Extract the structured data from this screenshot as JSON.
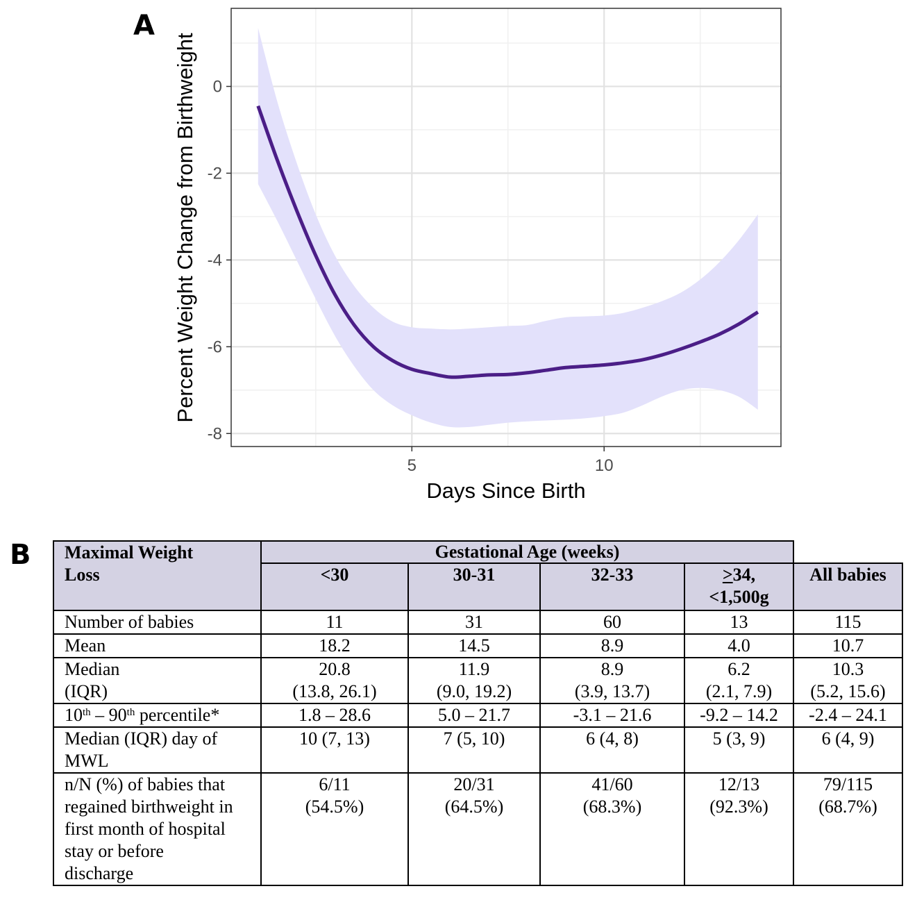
{
  "panel_labels": {
    "a": "A",
    "b": "B"
  },
  "chart_data": {
    "type": "line",
    "title": "",
    "xlabel": "Days Since Birth",
    "ylabel": "Percent Weight Change from Birthweight",
    "xlim": [
      0.3,
      14.6
    ],
    "ylim": [
      -8.3,
      1.8
    ],
    "x_ticks": [
      5,
      10
    ],
    "y_ticks": [
      0,
      -2,
      -4,
      -6,
      -8
    ],
    "grid": true,
    "line_color": "#4b1e87",
    "band_color": "#e3e1fb",
    "series": [
      {
        "x": [
          1,
          1.5,
          2,
          2.5,
          3,
          3.5,
          4,
          4.5,
          5,
          5.5,
          6,
          6.5,
          7,
          7.5,
          8,
          8.5,
          9,
          9.5,
          10,
          10.5,
          11,
          11.5,
          12,
          12.5,
          13,
          13.5,
          14
        ],
        "y": [
          -0.45,
          -1.7,
          -2.85,
          -3.9,
          -4.8,
          -5.5,
          -6.0,
          -6.32,
          -6.52,
          -6.62,
          -6.7,
          -6.68,
          -6.65,
          -6.64,
          -6.6,
          -6.54,
          -6.48,
          -6.45,
          -6.42,
          -6.37,
          -6.3,
          -6.19,
          -6.05,
          -5.89,
          -5.71,
          -5.48,
          -5.2
        ],
        "lower": [
          -2.25,
          -3.1,
          -4.0,
          -4.9,
          -5.75,
          -6.45,
          -7.0,
          -7.35,
          -7.58,
          -7.75,
          -7.85,
          -7.85,
          -7.8,
          -7.75,
          -7.72,
          -7.7,
          -7.68,
          -7.65,
          -7.6,
          -7.52,
          -7.35,
          -7.15,
          -7.0,
          -6.95,
          -7.0,
          -7.15,
          -7.45
        ],
        "upper": [
          1.35,
          -0.35,
          -1.75,
          -2.95,
          -3.9,
          -4.6,
          -5.1,
          -5.42,
          -5.55,
          -5.58,
          -5.6,
          -5.58,
          -5.55,
          -5.52,
          -5.5,
          -5.4,
          -5.32,
          -5.3,
          -5.28,
          -5.22,
          -5.1,
          -4.95,
          -4.75,
          -4.45,
          -4.05,
          -3.55,
          -2.95
        ]
      }
    ]
  },
  "table": {
    "header_col1": "Maximal Weight Loss",
    "ga_header": "Gestational Age (weeks)",
    "groups": [
      "<30",
      "30-31",
      "32-33",
      "34,",
      "<1,500g"
    ],
    "geq_symbol": ">",
    "all_babies": "All babies",
    "rows": [
      {
        "label": "Number of babies",
        "values": [
          "11",
          "31",
          "60",
          "13",
          "115"
        ]
      },
      {
        "label": "Mean",
        "values": [
          "18.2",
          "14.5",
          "8.9",
          "4.0",
          "10.7"
        ]
      },
      {
        "label_1": "Median",
        "label_2": "(IQR)",
        "values_1": [
          "20.8",
          "11.9",
          "8.9",
          "6.2",
          "10.3"
        ],
        "values_2": [
          "(13.8, 26.1)",
          "(9.0, 19.2)",
          "(3.9, 13.7)",
          "(2.1, 7.9)",
          "(5.2, 15.6)"
        ]
      },
      {
        "label_a": "10",
        "sup_a": "th",
        "label_b": " – 90",
        "sup_b": "th",
        "label_c": " percentile*",
        "values": [
          "1.8 – 28.6",
          "5.0 – 21.7",
          "-3.1 – 21.6",
          "-9.2 – 14.2",
          "-2.4 – 24.1"
        ]
      },
      {
        "label_1": "Median (IQR) day of",
        "label_2": "MWL",
        "values": [
          "10 (7, 13)",
          "7 (5, 10)",
          "6 (4, 8)",
          "5 (3, 9)",
          "6 (4, 9)"
        ]
      },
      {
        "label_lines": [
          "n/N (%) of babies that",
          "regained birthweight in",
          "first month of hospital",
          "stay or before",
          "discharge"
        ],
        "values_1": [
          "6/11",
          "20/31",
          "41/60",
          "12/13",
          "79/115"
        ],
        "values_2": [
          "(54.5%)",
          "(64.5%)",
          "(68.3%)",
          "(92.3%)",
          "(68.7%)"
        ]
      }
    ]
  }
}
